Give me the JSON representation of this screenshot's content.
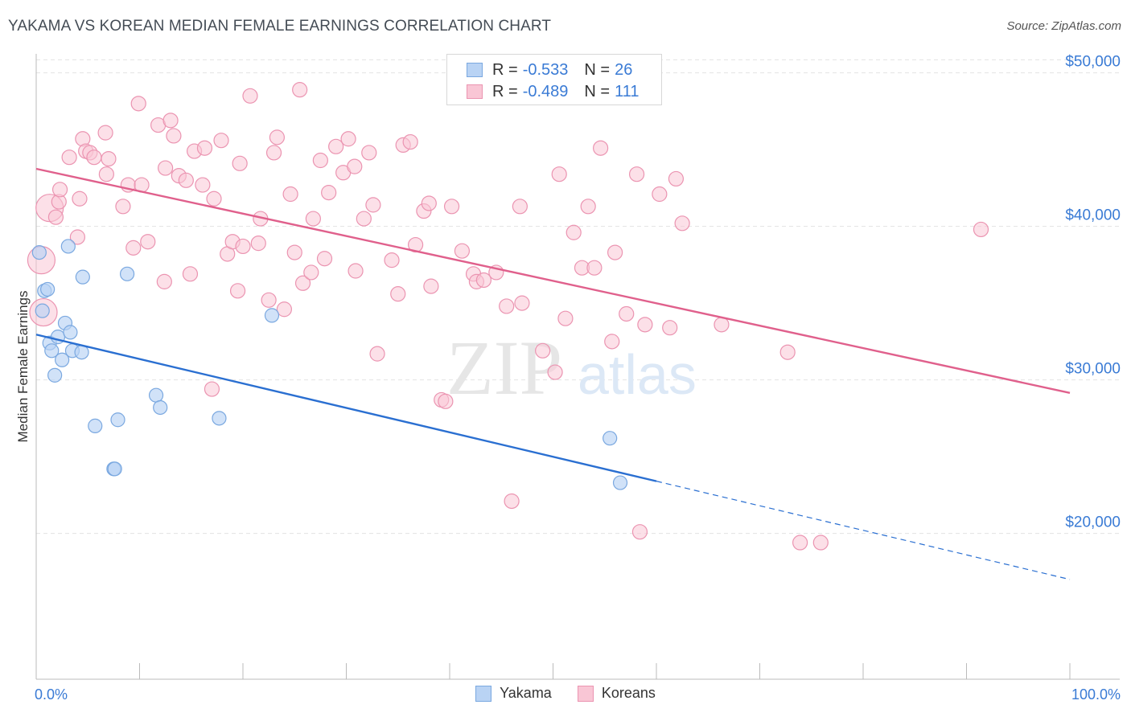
{
  "header": {
    "title": "YAKAMA VS KOREAN MEDIAN FEMALE EARNINGS CORRELATION CHART",
    "source": "Source: ZipAtlas.com"
  },
  "colors": {
    "yakama_fill": "#b9d3f4",
    "yakama_stroke": "#7aa8e0",
    "yakama_line": "#2a6fd1",
    "korean_fill": "#f9c6d5",
    "korean_stroke": "#eb94b1",
    "korean_line": "#e0608c",
    "axis_value": "#3a7bd5",
    "grid": "#e3e3e3"
  },
  "legend": {
    "rows": [
      {
        "r_label": "R =",
        "r_value": "-0.533",
        "n_label": "N =",
        "n_value": "26"
      },
      {
        "r_label": "R =",
        "r_value": "-0.489",
        "n_label": "N =",
        "n_value": "111"
      }
    ]
  },
  "bottom_legend": {
    "yakama": "Yakama",
    "koreans": "Koreans"
  },
  "watermark": {
    "zip": "ZIP",
    "atlas": "atlas"
  },
  "chart_data": {
    "type": "scatter",
    "title": "YAKAMA VS KOREAN MEDIAN FEMALE EARNINGS CORRELATION CHART",
    "xlabel": "",
    "ylabel": "Median Female Earnings",
    "xlim": [
      0,
      100
    ],
    "ylim": [
      10500,
      51500
    ],
    "x_tick_labels": [
      "0.0%",
      "100.0%"
    ],
    "y_ticks": [
      20000,
      30000,
      40000,
      50000
    ],
    "y_tick_labels": [
      "$20,000",
      "$30,000",
      "$40,000",
      "$50,000"
    ],
    "grid": true,
    "legend_position": "top-center",
    "series": [
      {
        "name": "Yakama",
        "r": -0.533,
        "n": 26,
        "trend": {
          "x0": 0,
          "y0": 32950,
          "x1": 60,
          "y1": 23400,
          "dash_to_x": 100,
          "dash_to_y": 17000
        },
        "points": [
          {
            "x": 0.3,
            "y": 38300
          },
          {
            "x": 0.6,
            "y": 34500
          },
          {
            "x": 0.8,
            "y": 35800
          },
          {
            "x": 1.1,
            "y": 35900
          },
          {
            "x": 1.3,
            "y": 32400
          },
          {
            "x": 1.5,
            "y": 31900
          },
          {
            "x": 1.8,
            "y": 30300
          },
          {
            "x": 2.1,
            "y": 32800
          },
          {
            "x": 2.5,
            "y": 31300
          },
          {
            "x": 2.8,
            "y": 33700
          },
          {
            "x": 3.1,
            "y": 38700
          },
          {
            "x": 3.3,
            "y": 33100
          },
          {
            "x": 3.5,
            "y": 31900
          },
          {
            "x": 4.4,
            "y": 31800
          },
          {
            "x": 4.5,
            "y": 36700
          },
          {
            "x": 5.7,
            "y": 27000
          },
          {
            "x": 7.5,
            "y": 24200
          },
          {
            "x": 7.6,
            "y": 24200
          },
          {
            "x": 7.9,
            "y": 27400
          },
          {
            "x": 8.8,
            "y": 36900
          },
          {
            "x": 11.6,
            "y": 29000
          },
          {
            "x": 12.0,
            "y": 28200
          },
          {
            "x": 17.7,
            "y": 27500
          },
          {
            "x": 22.8,
            "y": 34200
          },
          {
            "x": 55.5,
            "y": 26200
          },
          {
            "x": 56.5,
            "y": 23300
          }
        ]
      },
      {
        "name": "Koreans",
        "r": -0.489,
        "n": 111,
        "trend": {
          "x0": 0,
          "y0": 43750,
          "x1": 100,
          "y1": 29150
        },
        "points": [
          {
            "x": 0.5,
            "y": 37800,
            "big": true
          },
          {
            "x": 0.7,
            "y": 34400,
            "big": true
          },
          {
            "x": 1.3,
            "y": 41200,
            "big": true
          },
          {
            "x": 1.9,
            "y": 40600
          },
          {
            "x": 2.2,
            "y": 41600
          },
          {
            "x": 2.3,
            "y": 42400
          },
          {
            "x": 3.2,
            "y": 44500
          },
          {
            "x": 4.2,
            "y": 41800
          },
          {
            "x": 4.0,
            "y": 39300
          },
          {
            "x": 4.5,
            "y": 45700
          },
          {
            "x": 4.8,
            "y": 44900
          },
          {
            "x": 5.2,
            "y": 44800
          },
          {
            "x": 5.6,
            "y": 44500
          },
          {
            "x": 6.7,
            "y": 46100
          },
          {
            "x": 6.8,
            "y": 43400
          },
          {
            "x": 7.0,
            "y": 44400
          },
          {
            "x": 8.4,
            "y": 41300
          },
          {
            "x": 8.9,
            "y": 42700
          },
          {
            "x": 9.4,
            "y": 38600
          },
          {
            "x": 9.9,
            "y": 48000
          },
          {
            "x": 10.2,
            "y": 42700
          },
          {
            "x": 10.8,
            "y": 39000
          },
          {
            "x": 11.8,
            "y": 46600
          },
          {
            "x": 12.4,
            "y": 36400
          },
          {
            "x": 12.5,
            "y": 43800
          },
          {
            "x": 13.0,
            "y": 46900
          },
          {
            "x": 13.3,
            "y": 45900
          },
          {
            "x": 13.8,
            "y": 43300
          },
          {
            "x": 14.5,
            "y": 43000
          },
          {
            "x": 14.9,
            "y": 36900
          },
          {
            "x": 15.3,
            "y": 44900
          },
          {
            "x": 16.1,
            "y": 42700
          },
          {
            "x": 16.3,
            "y": 45100
          },
          {
            "x": 17.0,
            "y": 29400
          },
          {
            "x": 17.2,
            "y": 41800
          },
          {
            "x": 17.9,
            "y": 45600
          },
          {
            "x": 18.5,
            "y": 38200
          },
          {
            "x": 19.0,
            "y": 39000
          },
          {
            "x": 19.5,
            "y": 35800
          },
          {
            "x": 19.7,
            "y": 44100
          },
          {
            "x": 20.0,
            "y": 38700
          },
          {
            "x": 20.7,
            "y": 48500
          },
          {
            "x": 21.5,
            "y": 38900
          },
          {
            "x": 21.7,
            "y": 40500
          },
          {
            "x": 22.5,
            "y": 35200
          },
          {
            "x": 23.0,
            "y": 44800
          },
          {
            "x": 23.3,
            "y": 45800
          },
          {
            "x": 24.0,
            "y": 34600
          },
          {
            "x": 24.6,
            "y": 42100
          },
          {
            "x": 25.0,
            "y": 38300
          },
          {
            "x": 25.5,
            "y": 48900
          },
          {
            "x": 25.8,
            "y": 36300
          },
          {
            "x": 26.6,
            "y": 37000
          },
          {
            "x": 26.8,
            "y": 40500
          },
          {
            "x": 27.5,
            "y": 44300
          },
          {
            "x": 27.9,
            "y": 37900
          },
          {
            "x": 28.3,
            "y": 42200
          },
          {
            "x": 29.0,
            "y": 45200
          },
          {
            "x": 29.7,
            "y": 43500
          },
          {
            "x": 30.2,
            "y": 45700
          },
          {
            "x": 30.8,
            "y": 43900
          },
          {
            "x": 30.9,
            "y": 37100
          },
          {
            "x": 31.7,
            "y": 40500
          },
          {
            "x": 32.2,
            "y": 44800
          },
          {
            "x": 32.6,
            "y": 41400
          },
          {
            "x": 33.0,
            "y": 31700
          },
          {
            "x": 34.4,
            "y": 37800
          },
          {
            "x": 35.0,
            "y": 35600
          },
          {
            "x": 35.5,
            "y": 45300
          },
          {
            "x": 36.2,
            "y": 45500
          },
          {
            "x": 36.7,
            "y": 38800
          },
          {
            "x": 37.5,
            "y": 41000
          },
          {
            "x": 38.0,
            "y": 41500
          },
          {
            "x": 38.2,
            "y": 36100
          },
          {
            "x": 39.2,
            "y": 28700
          },
          {
            "x": 39.6,
            "y": 28600
          },
          {
            "x": 40.2,
            "y": 41300
          },
          {
            "x": 41.2,
            "y": 38400
          },
          {
            "x": 42.3,
            "y": 36900
          },
          {
            "x": 42.6,
            "y": 36400
          },
          {
            "x": 43.3,
            "y": 36500
          },
          {
            "x": 44.5,
            "y": 37000
          },
          {
            "x": 45.5,
            "y": 34800
          },
          {
            "x": 46.0,
            "y": 22100
          },
          {
            "x": 46.8,
            "y": 41300
          },
          {
            "x": 47.0,
            "y": 35000
          },
          {
            "x": 49.0,
            "y": 31900
          },
          {
            "x": 50.2,
            "y": 30500
          },
          {
            "x": 50.6,
            "y": 43400
          },
          {
            "x": 51.2,
            "y": 34000
          },
          {
            "x": 52.0,
            "y": 39600
          },
          {
            "x": 52.8,
            "y": 37300
          },
          {
            "x": 53.4,
            "y": 41300
          },
          {
            "x": 54.0,
            "y": 37300
          },
          {
            "x": 54.6,
            "y": 45100
          },
          {
            "x": 55.7,
            "y": 32500
          },
          {
            "x": 56.0,
            "y": 38300
          },
          {
            "x": 57.1,
            "y": 34300
          },
          {
            "x": 58.1,
            "y": 43400
          },
          {
            "x": 58.4,
            "y": 20100
          },
          {
            "x": 58.9,
            "y": 33600
          },
          {
            "x": 60.3,
            "y": 42100
          },
          {
            "x": 61.3,
            "y": 33400
          },
          {
            "x": 61.9,
            "y": 43100
          },
          {
            "x": 62.5,
            "y": 40200
          },
          {
            "x": 66.3,
            "y": 33600
          },
          {
            "x": 72.7,
            "y": 31800
          },
          {
            "x": 73.9,
            "y": 19400
          },
          {
            "x": 75.9,
            "y": 19400
          },
          {
            "x": 91.4,
            "y": 39800
          }
        ]
      }
    ]
  }
}
